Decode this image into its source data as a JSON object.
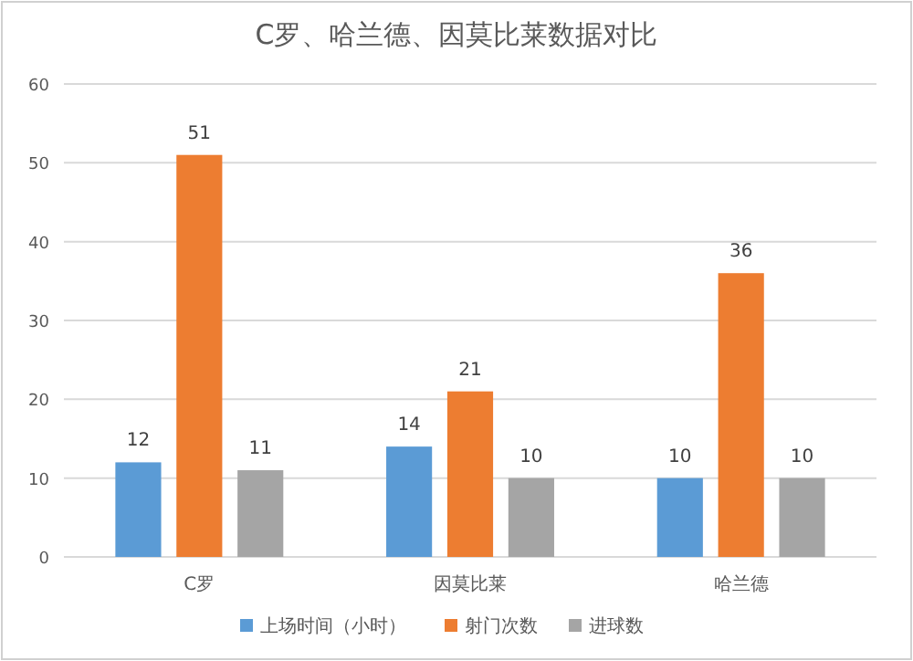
{
  "chart_data": {
    "type": "bar",
    "title": "C罗、哈兰德、因莫比莱数据对比",
    "categories": [
      "C罗",
      "因莫比莱",
      "哈兰德"
    ],
    "series": [
      {
        "name": "上场时间（小时）",
        "color": "#5b9bd5",
        "values": [
          12,
          14,
          10
        ]
      },
      {
        "name": "射门次数",
        "color": "#ed7d31",
        "values": [
          51,
          21,
          36
        ]
      },
      {
        "name": "进球数",
        "color": "#a5a5a5",
        "values": [
          11,
          10,
          10
        ]
      }
    ],
    "ylim": [
      0,
      60
    ],
    "yticks": [
      0,
      10,
      20,
      30,
      40,
      50,
      60
    ],
    "grid": "y",
    "legend": "bottom",
    "data_labels": true
  }
}
